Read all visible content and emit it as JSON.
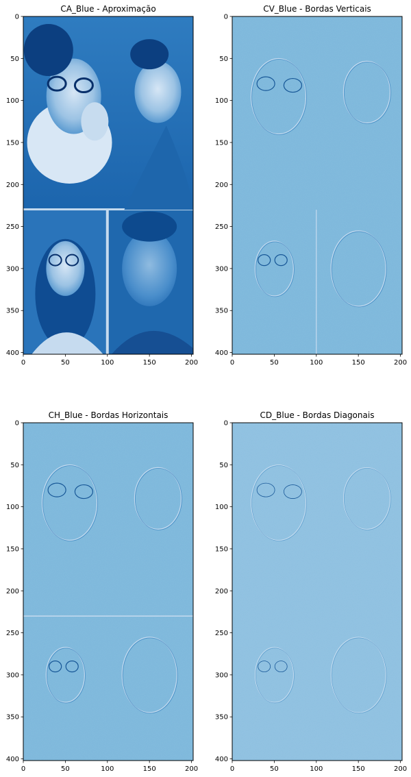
{
  "colormap": [
    "#f7fbff",
    "#c6dbef",
    "#6baed6",
    "#2171b5",
    "#08306b"
  ],
  "chart_data": [
    {
      "type": "heatmap",
      "title": "CA_Blue - Aproximação",
      "xlim": [
        0,
        202
      ],
      "ylim": [
        402,
        0
      ],
      "xticks": [
        0,
        50,
        100,
        150,
        200
      ],
      "yticks": [
        0,
        50,
        100,
        150,
        200,
        250,
        300,
        350,
        400
      ],
      "content": "image: downsampled blue-channel approximation of a photo collage (three smiling people)",
      "background_level": 0.55
    },
    {
      "type": "heatmap",
      "title": "CV_Blue - Bordas Verticais",
      "xlim": [
        0,
        202
      ],
      "ylim": [
        402,
        0
      ],
      "xticks": [
        0,
        50,
        100,
        150,
        200
      ],
      "yticks": [
        0,
        50,
        100,
        150,
        200,
        250,
        300,
        350,
        400
      ],
      "content": "image: vertical-edge detail coefficients",
      "background_level": 0.45
    },
    {
      "type": "heatmap",
      "title": "CH_Blue - Bordas Horizontais",
      "xlim": [
        0,
        202
      ],
      "ylim": [
        402,
        0
      ],
      "xticks": [
        0,
        50,
        100,
        150,
        200
      ],
      "yticks": [
        0,
        50,
        100,
        150,
        200,
        250,
        300,
        350,
        400
      ],
      "content": "image: horizontal-edge detail coefficients",
      "background_level": 0.45
    },
    {
      "type": "heatmap",
      "title": "CD_Blue - Bordas Diagonais",
      "xlim": [
        0,
        202
      ],
      "ylim": [
        402,
        0
      ],
      "xticks": [
        0,
        50,
        100,
        150,
        200
      ],
      "yticks": [
        0,
        50,
        100,
        150,
        200,
        250,
        300,
        350,
        400
      ],
      "content": "image: diagonal-edge detail coefficients",
      "background_level": 0.4
    }
  ]
}
